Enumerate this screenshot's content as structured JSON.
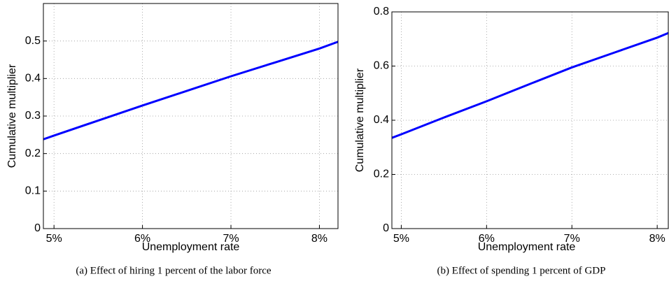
{
  "chart_data": [
    {
      "type": "line",
      "caption": "(a)  Effect of hiring 1 percent of the labor force",
      "x_label": "Unemployment rate",
      "y_label": "Cumulative multiplier",
      "xlim": [
        4.88,
        8.21
      ],
      "ylim": [
        0,
        0.6
      ],
      "xticks": [
        {
          "value": 5,
          "label": "5%"
        },
        {
          "value": 6,
          "label": "6%"
        },
        {
          "value": 7,
          "label": "7%"
        },
        {
          "value": 8,
          "label": "8%"
        }
      ],
      "yticks": [
        0,
        0.1,
        0.2,
        0.3,
        0.4,
        0.5
      ],
      "grid": true,
      "x": [
        4.88,
        5,
        5.5,
        6,
        6.5,
        7,
        7.5,
        8,
        8.21
      ],
      "series": [
        {
          "color": "#0000ff",
          "values": [
            0.238,
            0.248,
            0.288,
            0.328,
            0.367,
            0.406,
            0.443,
            0.48,
            0.498
          ]
        }
      ]
    },
    {
      "type": "line",
      "caption": "(b)  Effect of spending 1 percent of GDP",
      "x_label": "Unemployment rate",
      "y_label": "Cumulative multiplier",
      "xlim": [
        4.89,
        8.13
      ],
      "ylim": [
        0,
        0.8
      ],
      "xticks": [
        {
          "value": 5,
          "label": "5%"
        },
        {
          "value": 6,
          "label": "6%"
        },
        {
          "value": 7,
          "label": "7%"
        },
        {
          "value": 8,
          "label": "8%"
        }
      ],
      "yticks": [
        0,
        0.2,
        0.4,
        0.6,
        0.8
      ],
      "grid": true,
      "x": [
        4.89,
        5,
        5.5,
        6,
        6.5,
        7,
        7.5,
        8,
        8.13
      ],
      "series": [
        {
          "color": "#0000ff",
          "values": [
            0.335,
            0.348,
            0.41,
            0.47,
            0.533,
            0.595,
            0.65,
            0.705,
            0.722
          ]
        }
      ]
    }
  ]
}
